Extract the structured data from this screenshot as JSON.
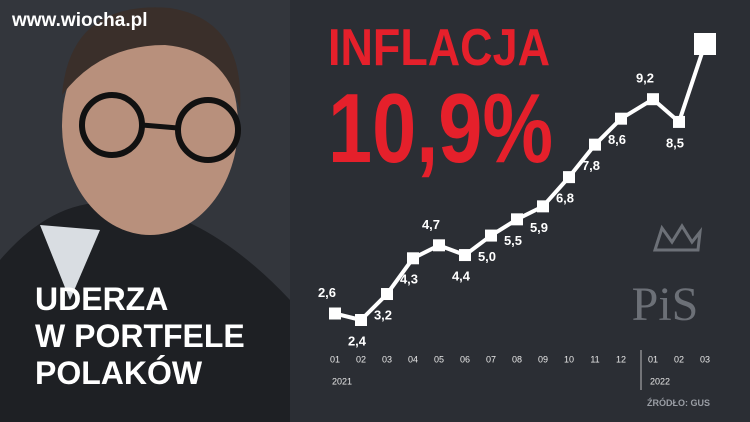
{
  "watermark": "www.wiocha.pl",
  "headline": [
    "INFLACJA",
    "10,9%"
  ],
  "slogan": [
    "UDERZA",
    "W PORTFELE",
    "POLAKÓW"
  ],
  "logo": "PiS",
  "source": "ŹRÓDŁO: GUS",
  "chart_data": {
    "type": "line",
    "categories": [
      "01",
      "02",
      "03",
      "04",
      "05",
      "06",
      "07",
      "08",
      "09",
      "10",
      "11",
      "12",
      "01",
      "02",
      "03"
    ],
    "x_groups": [
      "2021",
      "2022"
    ],
    "values": [
      2.6,
      2.4,
      3.2,
      4.3,
      4.7,
      4.4,
      5.0,
      5.5,
      5.9,
      6.8,
      7.8,
      8.6,
      9.2,
      8.5,
      10.9
    ],
    "value_labels": [
      "2,6",
      "2,4",
      "3,2",
      "4,3",
      "4,7",
      "4,4",
      "5,0",
      "5,5",
      "5,9",
      "6,8",
      "7,8",
      "8,6",
      "9,2",
      "8,5",
      null
    ],
    "color": "#ffffff"
  }
}
